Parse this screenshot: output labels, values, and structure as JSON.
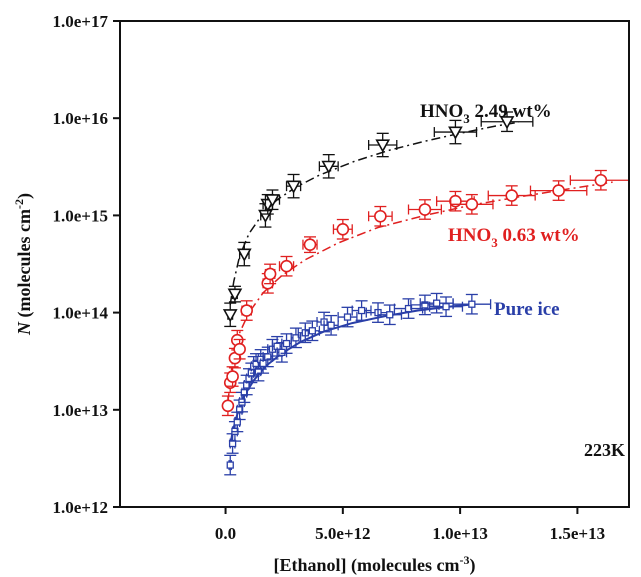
{
  "chart_data": {
    "type": "scatter",
    "xlabel": "[Ethanol] (molecules cm",
    "xlabel_sup": "-3",
    "xlabel_end": ")",
    "ylabel_italic": "N",
    "ylabel": " (molecules cm",
    "ylabel_sup": "-2",
    "ylabel_end": ")",
    "xlim": [
      -4500000000000.0,
      17200000000000.0
    ],
    "ylim": [
      1000000000000.0,
      1e+17
    ],
    "y_scale": "log",
    "grid": false,
    "x_ticks": [
      0,
      5000000000000.0,
      10000000000000.0,
      15000000000000.0
    ],
    "x_tick_labels": [
      "0.0",
      "5.0e+12",
      "1.0e+13",
      "1.5e+13"
    ],
    "y_ticks": [
      1000000000000.0,
      10000000000000.0,
      100000000000000.0,
      1000000000000000.0,
      1e+16,
      1e+17
    ],
    "y_tick_labels": [
      "1.0e+12",
      "1.0e+13",
      "1.0e+14",
      "1.0e+15",
      "1.0e+16",
      "1.0e+17"
    ],
    "annotation": "223K",
    "series": [
      {
        "name": "HNO3 2.49 wt%",
        "label_main": "HNO",
        "label_sub": "3",
        "label_rest": " 2.49 wt%",
        "color": "#111111",
        "marker": "triangle-down",
        "fit_style": "dash-dot",
        "points": [
          {
            "x": 200000000000.0,
            "y": 95000000000000.0,
            "xerr": 100000000000.0,
            "yerr": 0.12
          },
          {
            "x": 400000000000.0,
            "y": 155000000000000.0,
            "xerr": 100000000000.0,
            "yerr": 0.08
          },
          {
            "x": 800000000000.0,
            "y": 400000000000000.0,
            "xerr": 200000000000.0,
            "yerr": 0.12
          },
          {
            "x": 1700000000000.0,
            "y": 1000000000000000.0,
            "xerr": 200000000000.0,
            "yerr": 0.12
          },
          {
            "x": 1800000000000.0,
            "y": 1300000000000000.0,
            "xerr": 200000000000.0,
            "yerr": 0.1
          },
          {
            "x": 2000000000000.0,
            "y": 1450000000000000.0,
            "xerr": 300000000000.0,
            "yerr": 0.1
          },
          {
            "x": 2900000000000.0,
            "y": 2000000000000000.0,
            "xerr": 300000000000.0,
            "yerr": 0.12
          },
          {
            "x": 4400000000000.0,
            "y": 3200000000000000.0,
            "xerr": 400000000000.0,
            "yerr": 0.12
          },
          {
            "x": 6700000000000.0,
            "y": 5300000000000000.0,
            "xerr": 600000000000.0,
            "yerr": 0.12
          },
          {
            "x": 9800000000000.0,
            "y": 7200000000000000.0,
            "xerr": 900000000000.0,
            "yerr": 0.12
          },
          {
            "x": 12000000000000.0,
            "y": 9200000000000000.0,
            "xerr": 1100000000000.0,
            "yerr": 0.1
          }
        ],
        "fit": {
          "x": [
            200000000000.0,
            350000000000.0,
            600000000000.0,
            1000000000000.0,
            1600000000000.0,
            2200000000000.0,
            3000000000000.0,
            4000000000000.0,
            5500000000000.0,
            7000000000000.0,
            8500000000000.0,
            10000000000000.0,
            11500000000000.0,
            12500000000000.0
          ],
          "y": [
            120000000000000.0,
            210000000000000.0,
            380000000000000.0,
            650000000000000.0,
            1050000000000000.0,
            1450000000000000.0,
            1950000000000000.0,
            2600000000000000.0,
            3600000000000000.0,
            4700000000000000.0,
            5800000000000000.0,
            7000000000000000.0,
            8300000000000000.0,
            9100000000000000.0
          ]
        }
      },
      {
        "name": "HNO3 0.63 wt%",
        "label_main": "HNO",
        "label_sub": "3",
        "label_rest": " 0.63 wt%",
        "color": "#e02020",
        "marker": "circle",
        "fit_style": "dash-dot",
        "points": [
          {
            "x": 100000000000.0,
            "y": 11000000000000.0,
            "xerr": 100000000000.0,
            "yerr": 0.1
          },
          {
            "x": 200000000000.0,
            "y": 19000000000000.0,
            "xerr": 100000000000.0,
            "yerr": 0.1
          },
          {
            "x": 300000000000.0,
            "y": 22000000000000.0,
            "xerr": 100000000000.0,
            "yerr": 0.1
          },
          {
            "x": 400000000000.0,
            "y": 34000000000000.0,
            "xerr": 100000000000.0,
            "yerr": 0.1
          },
          {
            "x": 500000000000.0,
            "y": 52000000000000.0,
            "xerr": 100000000000.0,
            "yerr": 0.1
          },
          {
            "x": 600000000000.0,
            "y": 42000000000000.0,
            "xerr": 100000000000.0,
            "yerr": 0.1
          },
          {
            "x": 900000000000.0,
            "y": 105000000000000.0,
            "xerr": 200000000000.0,
            "yerr": 0.1
          },
          {
            "x": 1800000000000.0,
            "y": 200000000000000.0,
            "xerr": 200000000000.0,
            "yerr": 0.1
          },
          {
            "x": 1900000000000.0,
            "y": 250000000000000.0,
            "xerr": 200000000000.0,
            "yerr": 0.1
          },
          {
            "x": 2600000000000.0,
            "y": 300000000000000.0,
            "xerr": 300000000000.0,
            "yerr": 0.1
          },
          {
            "x": 3600000000000.0,
            "y": 500000000000000.0,
            "xerr": 300000000000.0,
            "yerr": 0.08
          },
          {
            "x": 5000000000000.0,
            "y": 720000000000000.0,
            "xerr": 400000000000.0,
            "yerr": 0.1
          },
          {
            "x": 6600000000000.0,
            "y": 980000000000000.0,
            "xerr": 500000000000.0,
            "yerr": 0.1
          },
          {
            "x": 8500000000000.0,
            "y": 1150000000000000.0,
            "xerr": 700000000000.0,
            "yerr": 0.1
          },
          {
            "x": 9800000000000.0,
            "y": 1400000000000000.0,
            "xerr": 800000000000.0,
            "yerr": 0.1
          },
          {
            "x": 10500000000000.0,
            "y": 1300000000000000.0,
            "xerr": 900000000000.0,
            "yerr": 0.1
          },
          {
            "x": 12200000000000.0,
            "y": 1600000000000000.0,
            "xerr": 1000000000000.0,
            "yerr": 0.1
          },
          {
            "x": 14200000000000.0,
            "y": 1800000000000000.0,
            "xerr": 1200000000000.0,
            "yerr": 0.1
          },
          {
            "x": 16000000000000.0,
            "y": 2300000000000000.0,
            "xerr": 1300000000000.0,
            "yerr": 0.1
          }
        ],
        "fit": {
          "x": [
            100000000000.0,
            300000000000.0,
            600000000000.0,
            1000000000000.0,
            1600000000000.0,
            2400000000000.0,
            3400000000000.0,
            4800000000000.0,
            6500000000000.0,
            8500000000000.0,
            10500000000000.0,
            12500000000000.0,
            14500000000000.0,
            16500000000000.0
          ],
          "y": [
            12000000000000.0,
            32000000000000.0,
            62000000000000.0,
            100000000000000.0,
            160000000000000.0,
            240000000000000.0,
            350000000000000.0,
            520000000000000.0,
            750000000000000.0,
            1000000000000000.0,
            1280000000000000.0,
            1550000000000000.0,
            1850000000000000.0,
            2200000000000000.0
          ]
        }
      },
      {
        "name": "Pure ice",
        "label_main": "Pure ice",
        "label_sub": "",
        "label_rest": "",
        "color": "#2a3fa8",
        "marker": "square",
        "fit_style": "solid",
        "points": [
          {
            "x": 200000000000.0,
            "y": 2700000000000.0,
            "xerr": 50000000000.0,
            "yerr": 0.1
          },
          {
            "x": 300000000000.0,
            "y": 4500000000000.0,
            "xerr": 100000000000.0,
            "yerr": 0.1
          },
          {
            "x": 400000000000.0,
            "y": 6000000000000.0,
            "xerr": 100000000000.0,
            "yerr": 0.1
          },
          {
            "x": 500000000000.0,
            "y": 7500000000000.0,
            "xerr": 100000000000.0,
            "yerr": 0.1
          },
          {
            "x": 600000000000.0,
            "y": 10000000000000.0,
            "xerr": 100000000000.0,
            "yerr": 0.1
          },
          {
            "x": 700000000000.0,
            "y": 12000000000000.0,
            "xerr": 100000000000.0,
            "yerr": 0.1
          },
          {
            "x": 800000000000.0,
            "y": 15000000000000.0,
            "xerr": 100000000000.0,
            "yerr": 0.1
          },
          {
            "x": 900000000000.0,
            "y": 18000000000000.0,
            "xerr": 100000000000.0,
            "yerr": 0.1
          },
          {
            "x": 1000000000000.0,
            "y": 21000000000000.0,
            "xerr": 100000000000.0,
            "yerr": 0.1
          },
          {
            "x": 1100000000000.0,
            "y": 24000000000000.0,
            "xerr": 100000000000.0,
            "yerr": 0.1
          },
          {
            "x": 1200000000000.0,
            "y": 28000000000000.0,
            "xerr": 100000000000.0,
            "yerr": 0.1
          },
          {
            "x": 1300000000000.0,
            "y": 30000000000000.0,
            "xerr": 100000000000.0,
            "yerr": 0.1
          },
          {
            "x": 1400000000000.0,
            "y": 25000000000000.0,
            "xerr": 100000000000.0,
            "yerr": 0.1
          },
          {
            "x": 1500000000000.0,
            "y": 33000000000000.0,
            "xerr": 100000000000.0,
            "yerr": 0.1
          },
          {
            "x": 1600000000000.0,
            "y": 30000000000000.0,
            "xerr": 100000000000.0,
            "yerr": 0.1
          },
          {
            "x": 1800000000000.0,
            "y": 35000000000000.0,
            "xerr": 200000000000.0,
            "yerr": 0.1
          },
          {
            "x": 2000000000000.0,
            "y": 42000000000000.0,
            "xerr": 200000000000.0,
            "yerr": 0.1
          },
          {
            "x": 2200000000000.0,
            "y": 45000000000000.0,
            "xerr": 200000000000.0,
            "yerr": 0.1
          },
          {
            "x": 2400000000000.0,
            "y": 39000000000000.0,
            "xerr": 200000000000.0,
            "yerr": 0.1
          },
          {
            "x": 2600000000000.0,
            "y": 48000000000000.0,
            "xerr": 200000000000.0,
            "yerr": 0.1
          },
          {
            "x": 3000000000000.0,
            "y": 55000000000000.0,
            "xerr": 200000000000.0,
            "yerr": 0.1
          },
          {
            "x": 3400000000000.0,
            "y": 62000000000000.0,
            "xerr": 300000000000.0,
            "yerr": 0.1
          },
          {
            "x": 3700000000000.0,
            "y": 65000000000000.0,
            "xerr": 300000000000.0,
            "yerr": 0.1
          },
          {
            "x": 4200000000000.0,
            "y": 80000000000000.0,
            "xerr": 300000000000.0,
            "yerr": 0.1
          },
          {
            "x": 4500000000000.0,
            "y": 74000000000000.0,
            "xerr": 300000000000.0,
            "yerr": 0.1
          },
          {
            "x": 5200000000000.0,
            "y": 90000000000000.0,
            "xerr": 400000000000.0,
            "yerr": 0.1
          },
          {
            "x": 5800000000000.0,
            "y": 105000000000000.0,
            "xerr": 400000000000.0,
            "yerr": 0.1
          },
          {
            "x": 6500000000000.0,
            "y": 100000000000000.0,
            "xerr": 500000000000.0,
            "yerr": 0.1
          },
          {
            "x": 7000000000000.0,
            "y": 95000000000000.0,
            "xerr": 500000000000.0,
            "yerr": 0.1
          },
          {
            "x": 7800000000000.0,
            "y": 110000000000000.0,
            "xerr": 600000000000.0,
            "yerr": 0.1
          },
          {
            "x": 8500000000000.0,
            "y": 120000000000000.0,
            "xerr": 600000000000.0,
            "yerr": 0.1
          },
          {
            "x": 9000000000000.0,
            "y": 125000000000000.0,
            "xerr": 700000000000.0,
            "yerr": 0.1
          },
          {
            "x": 9400000000000.0,
            "y": 115000000000000.0,
            "xerr": 700000000000.0,
            "yerr": 0.1
          },
          {
            "x": 10500000000000.0,
            "y": 122000000000000.0,
            "xerr": 800000000000.0,
            "yerr": 0.1
          }
        ],
        "fit": {
          "x": [
            200000000000.0,
            300000000000.0,
            500000000000.0,
            800000000000.0,
            1200000000000.0,
            1700000000000.0,
            2400000000000.0,
            3200000000000.0,
            4200000000000.0,
            5400000000000.0,
            6800000000000.0,
            8200000000000.0,
            9500000000000.0,
            10600000000000.0
          ],
          "y": [
            4200000000000.0,
            6000000000000.0,
            9000000000000.0,
            14000000000000.0,
            20000000000000.0,
            28000000000000.0,
            38000000000000.0,
            50000000000000.0,
            64000000000000.0,
            78000000000000.0,
            92000000000000.0,
            105000000000000.0,
            115000000000000.0,
            122000000000000.0
          ]
        }
      }
    ]
  }
}
